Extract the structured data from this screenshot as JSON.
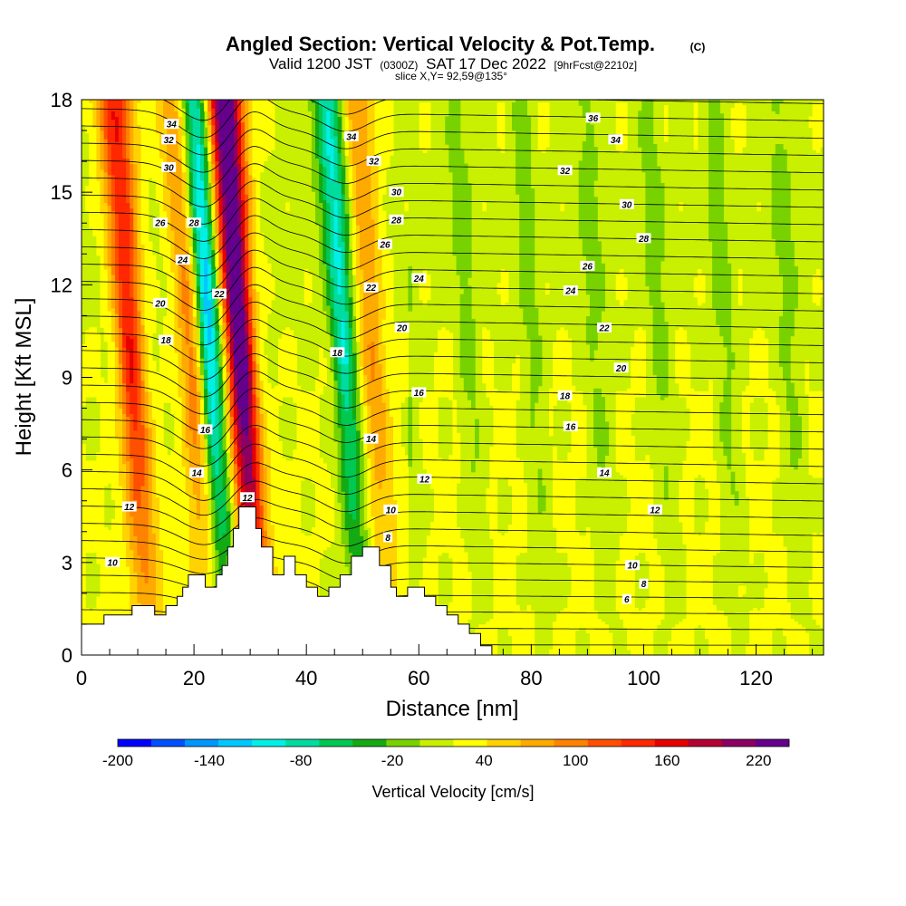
{
  "chart_data": {
    "type": "heatmap",
    "title": "Angled Section: Vertical Velocity & Pot.Temp.",
    "title_unit": "(C)",
    "subtitle_valid": "Valid 1200 JST",
    "subtitle_z": "(0300Z)",
    "subtitle_date": "SAT 17 Dec 2022",
    "subtitle_fcst": "[9hrFcst@2210z]",
    "slice_label": "slice X,Y= 92,59@135°",
    "xlabel": "Distance [nm]",
    "ylabel": "Height [Kft MSL]",
    "xlim": [
      0,
      132
    ],
    "ylim": [
      0,
      18
    ],
    "x_ticks": [
      0,
      20,
      40,
      60,
      80,
      100,
      120
    ],
    "y_ticks": [
      0,
      3,
      6,
      9,
      12,
      15,
      18
    ],
    "x_tick_labels": [
      "0",
      "20",
      "40",
      "60",
      "80",
      "100",
      "120"
    ],
    "y_tick_labels": [
      "0",
      "3",
      "6",
      "9",
      "12",
      "15",
      "18"
    ],
    "colorbar": {
      "title": "Vertical Velocity [cm/s]",
      "min": -200,
      "max": 240,
      "step": 20,
      "tick_values": [
        -200,
        -140,
        -80,
        -20,
        40,
        100,
        160,
        220
      ],
      "tick_labels": [
        "-200",
        "-140",
        "-80",
        "-20",
        "40",
        "100",
        "160",
        "220"
      ],
      "colors": [
        "#0000ff",
        "#0050ff",
        "#0096ff",
        "#00c8ff",
        "#00f0e6",
        "#00dca0",
        "#00c850",
        "#14aa14",
        "#78d200",
        "#c8f000",
        "#ffff00",
        "#ffd200",
        "#ffaa00",
        "#ff8200",
        "#ff5000",
        "#ff2800",
        "#e60000",
        "#b40032",
        "#8c0064",
        "#64008c"
      ]
    },
    "terrain_kft": [
      [
        0,
        1.0
      ],
      [
        4,
        1.0
      ],
      [
        4,
        1.3
      ],
      [
        9,
        1.3
      ],
      [
        9,
        1.6
      ],
      [
        13,
        1.6
      ],
      [
        13,
        1.3
      ],
      [
        15,
        1.3
      ],
      [
        15,
        1.6
      ],
      [
        17,
        1.6
      ],
      [
        17,
        1.9
      ],
      [
        18,
        1.9
      ],
      [
        18,
        2.2
      ],
      [
        19,
        2.2
      ],
      [
        19,
        2.6
      ],
      [
        22,
        2.6
      ],
      [
        22,
        2.2
      ],
      [
        24,
        2.2
      ],
      [
        24,
        2.6
      ],
      [
        25,
        2.6
      ],
      [
        25,
        2.9
      ],
      [
        26,
        2.9
      ],
      [
        26,
        3.5
      ],
      [
        27,
        3.5
      ],
      [
        27,
        4.1
      ],
      [
        28,
        4.1
      ],
      [
        28,
        4.8
      ],
      [
        31,
        4.8
      ],
      [
        31,
        4.1
      ],
      [
        32,
        4.1
      ],
      [
        32,
        3.5
      ],
      [
        34,
        3.5
      ],
      [
        34,
        2.6
      ],
      [
        36,
        2.6
      ],
      [
        36,
        3.2
      ],
      [
        38,
        3.2
      ],
      [
        38,
        2.6
      ],
      [
        40,
        2.6
      ],
      [
        40,
        2.2
      ],
      [
        42,
        2.2
      ],
      [
        42,
        1.9
      ],
      [
        44,
        1.9
      ],
      [
        44,
        2.2
      ],
      [
        46,
        2.2
      ],
      [
        46,
        2.6
      ],
      [
        48,
        2.6
      ],
      [
        48,
        3.2
      ],
      [
        50,
        3.2
      ],
      [
        50,
        3.5
      ],
      [
        53,
        3.5
      ],
      [
        53,
        2.9
      ],
      [
        55,
        2.9
      ],
      [
        55,
        2.2
      ],
      [
        56,
        2.2
      ],
      [
        56,
        1.9
      ],
      [
        58,
        1.9
      ],
      [
        58,
        2.2
      ],
      [
        61,
        2.2
      ],
      [
        61,
        1.9
      ],
      [
        63,
        1.9
      ],
      [
        63,
        1.6
      ],
      [
        65,
        1.6
      ],
      [
        65,
        1.3
      ],
      [
        67,
        1.3
      ],
      [
        67,
        1.0
      ],
      [
        69,
        1.0
      ],
      [
        69,
        0.7
      ],
      [
        71,
        0.7
      ],
      [
        71,
        0.3
      ],
      [
        73,
        0.3
      ],
      [
        73,
        0
      ]
    ],
    "updrafts_cm_s": [
      {
        "center_x": 28.5,
        "max": 220
      },
      {
        "center_x": 9,
        "max": 120
      },
      {
        "center_x": 20,
        "max": 80
      },
      {
        "center_x": 52,
        "max": 60
      }
    ],
    "downdrafts_cm_s": [
      {
        "center_x": 23,
        "min": -140
      },
      {
        "center_x": 47,
        "min": -100
      }
    ],
    "contour_labels": [
      {
        "text": "36",
        "x": 91,
        "y": 17.4
      },
      {
        "text": "34",
        "x": 16,
        "y": 17.2
      },
      {
        "text": "34",
        "x": 48,
        "y": 16.8
      },
      {
        "text": "34",
        "x": 95,
        "y": 16.7
      },
      {
        "text": "32",
        "x": 15.5,
        "y": 16.7
      },
      {
        "text": "32",
        "x": 52,
        "y": 16.0
      },
      {
        "text": "32",
        "x": 86,
        "y": 15.7
      },
      {
        "text": "30",
        "x": 15.5,
        "y": 15.8
      },
      {
        "text": "30",
        "x": 56,
        "y": 15.0
      },
      {
        "text": "30",
        "x": 97,
        "y": 14.6
      },
      {
        "text": "28",
        "x": 20,
        "y": 14.0
      },
      {
        "text": "28",
        "x": 56,
        "y": 14.1
      },
      {
        "text": "28",
        "x": 100,
        "y": 13.5
      },
      {
        "text": "26",
        "x": 14,
        "y": 14.0
      },
      {
        "text": "26",
        "x": 54,
        "y": 13.3
      },
      {
        "text": "26",
        "x": 90,
        "y": 12.6
      },
      {
        "text": "24",
        "x": 18,
        "y": 12.8
      },
      {
        "text": "24",
        "x": 60,
        "y": 12.2
      },
      {
        "text": "24",
        "x": 87,
        "y": 11.8
      },
      {
        "text": "22",
        "x": 24.5,
        "y": 11.7
      },
      {
        "text": "22",
        "x": 51.5,
        "y": 11.9
      },
      {
        "text": "22",
        "x": 93,
        "y": 10.6
      },
      {
        "text": "20",
        "x": 14,
        "y": 11.4
      },
      {
        "text": "20",
        "x": 57,
        "y": 10.6
      },
      {
        "text": "20",
        "x": 96,
        "y": 9.3
      },
      {
        "text": "18",
        "x": 15,
        "y": 10.2
      },
      {
        "text": "18",
        "x": 45.5,
        "y": 9.8
      },
      {
        "text": "18",
        "x": 86,
        "y": 8.4
      },
      {
        "text": "16",
        "x": 22,
        "y": 7.3
      },
      {
        "text": "16",
        "x": 60,
        "y": 8.5
      },
      {
        "text": "16",
        "x": 87,
        "y": 7.4
      },
      {
        "text": "14",
        "x": 20.5,
        "y": 5.9
      },
      {
        "text": "14",
        "x": 51.5,
        "y": 7.0
      },
      {
        "text": "14",
        "x": 93,
        "y": 5.9
      },
      {
        "text": "12",
        "x": 29.5,
        "y": 5.1
      },
      {
        "text": "12",
        "x": 8.5,
        "y": 4.8
      },
      {
        "text": "12",
        "x": 61,
        "y": 5.7
      },
      {
        "text": "12",
        "x": 102,
        "y": 4.7
      },
      {
        "text": "10",
        "x": 5.5,
        "y": 3.0
      },
      {
        "text": "10",
        "x": 55,
        "y": 4.7
      },
      {
        "text": "10",
        "x": 98,
        "y": 2.9
      },
      {
        "text": "8",
        "x": 54.5,
        "y": 3.8
      },
      {
        "text": "8",
        "x": 100,
        "y": 2.3
      },
      {
        "text": "6",
        "x": 97,
        "y": 1.8
      }
    ]
  }
}
